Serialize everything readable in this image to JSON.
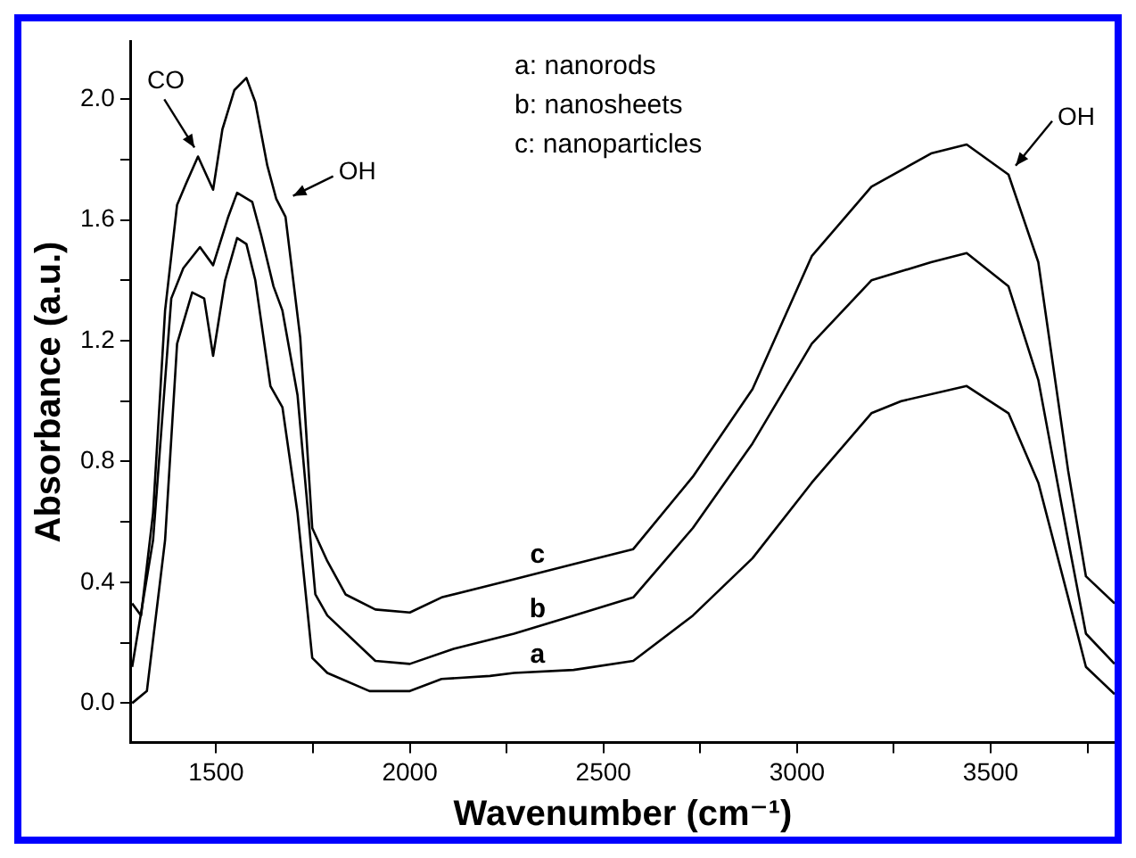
{
  "chart_data": {
    "type": "line",
    "xlabel": "Wavenumber (cm⁻¹)",
    "ylabel": "Absorbance (a.u.)",
    "xlim": [
      1280,
      3820
    ],
    "ylim": [
      -0.13,
      2.19
    ],
    "xticks": [
      1500,
      {
        "value": 1750,
        "label": null
      },
      2000,
      {
        "value": 2250,
        "label": null
      },
      2500,
      {
        "value": 2750,
        "label": null
      },
      3000,
      {
        "value": 3250,
        "label": null
      },
      3500,
      {
        "value": 3750,
        "label": null
      }
    ],
    "yticks": [
      {
        "value": 0,
        "label": "0.0"
      },
      {
        "value": 0.2,
        "label": null
      },
      0.4,
      {
        "value": 0.6,
        "label": null
      },
      0.8,
      {
        "value": 1.0,
        "label": null
      },
      1.2,
      {
        "value": 1.4,
        "label": null
      },
      1.6,
      {
        "value": 1.8,
        "label": null
      },
      {
        "value": 2.0,
        "label": "2.0"
      }
    ],
    "marker": "none",
    "line_style": "solid",
    "legend": false,
    "series": [
      {
        "color": "#000000",
        "x": [
          1283,
          1321,
          1368,
          1399,
          1438,
          1469,
          1492,
          1523,
          1554,
          1578,
          1601,
          1640,
          1671,
          1710,
          1748,
          1787,
          1896,
          2000,
          2082,
          2207,
          2269,
          2423,
          2577,
          2731,
          2885,
          3038,
          3192,
          3269,
          3438,
          3546,
          3623,
          3700,
          3746,
          3820
        ],
        "values": [
          0.0,
          0.04,
          0.54,
          1.19,
          1.36,
          1.34,
          1.15,
          1.4,
          1.54,
          1.52,
          1.4,
          1.05,
          0.98,
          0.63,
          0.15,
          0.1,
          0.04,
          0.04,
          0.08,
          0.09,
          0.1,
          0.11,
          0.14,
          0.29,
          0.48,
          0.73,
          0.96,
          1.0,
          1.05,
          0.96,
          0.73,
          0.35,
          0.12,
          0.03
        ]
      },
      {
        "color": "#000000",
        "x": [
          1283,
          1337,
          1384,
          1415,
          1458,
          1492,
          1531,
          1554,
          1593,
          1616,
          1648,
          1671,
          1710,
          1756,
          1787,
          1911,
          2000,
          2113,
          2269,
          2423,
          2577,
          2731,
          2885,
          3038,
          3192,
          3346,
          3438,
          3546,
          3623,
          3700,
          3746,
          3820
        ],
        "values": [
          0.12,
          0.54,
          1.34,
          1.44,
          1.51,
          1.45,
          1.61,
          1.69,
          1.66,
          1.55,
          1.38,
          1.3,
          1.02,
          0.36,
          0.29,
          0.14,
          0.13,
          0.18,
          0.23,
          0.29,
          0.35,
          0.58,
          0.86,
          1.19,
          1.4,
          1.46,
          1.49,
          1.38,
          1.07,
          0.54,
          0.23,
          0.13
        ]
      },
      {
        "color": "#000000",
        "x": [
          1283,
          1306,
          1337,
          1368,
          1399,
          1422,
          1453,
          1492,
          1516,
          1547,
          1578,
          1601,
          1632,
          1655,
          1679,
          1717,
          1748,
          1787,
          1834,
          1911,
          2000,
          2082,
          2207,
          2269,
          2423,
          2577,
          2731,
          2885,
          3038,
          3192,
          3346,
          3438,
          3546,
          3623,
          3700,
          3746,
          3820
        ],
        "values": [
          0.33,
          0.29,
          0.63,
          1.3,
          1.65,
          1.72,
          1.81,
          1.7,
          1.9,
          2.03,
          2.07,
          1.99,
          1.78,
          1.67,
          1.61,
          1.21,
          0.58,
          0.47,
          0.36,
          0.31,
          0.3,
          0.35,
          0.39,
          0.41,
          0.46,
          0.51,
          0.75,
          1.04,
          1.48,
          1.71,
          1.82,
          1.85,
          1.75,
          1.46,
          0.77,
          0.42,
          0.33
        ]
      }
    ],
    "annotations": [
      {
        "text": "CO",
        "x": 1453,
        "y": 1.81
      },
      {
        "text": "OH",
        "x": 1680,
        "y": 1.65
      },
      {
        "text": "OH",
        "x": 3546,
        "y": 1.75
      },
      {
        "text": "a",
        "x": 2330,
        "y": 0.1
      },
      {
        "text": "b",
        "x": 2330,
        "y": 0.25
      },
      {
        "text": "c",
        "x": 2330,
        "y": 0.43
      },
      "a: nanorods",
      "b: nanosheets",
      "c: nanoparticles"
    ]
  }
}
